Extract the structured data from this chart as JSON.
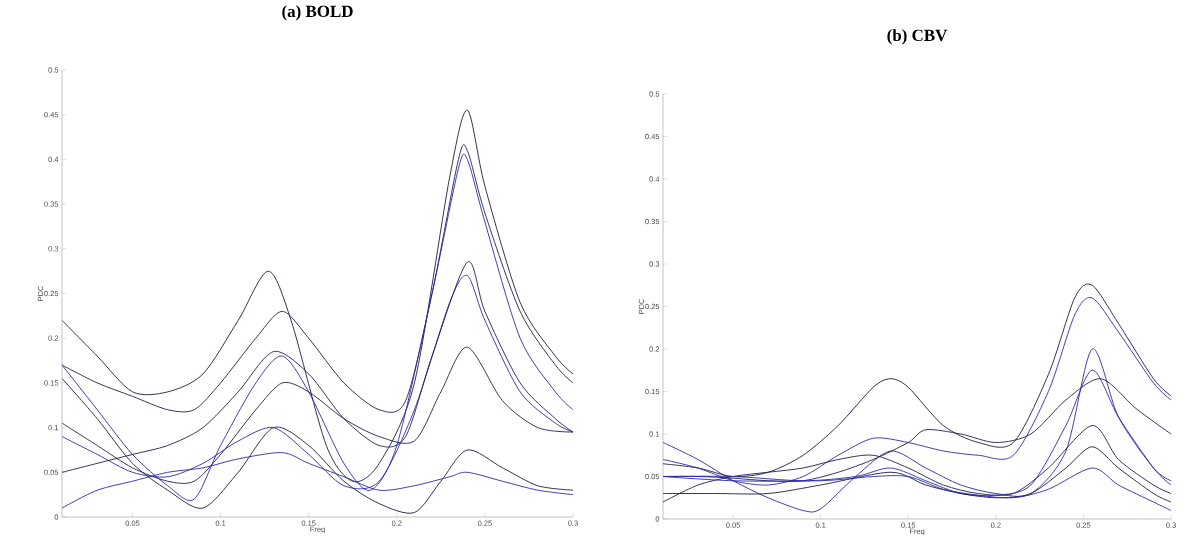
{
  "chart_data": [
    {
      "type": "line",
      "title": "(a) BOLD",
      "xlabel": "Freq",
      "ylabel": "PDC",
      "xlim": [
        0.01,
        0.3
      ],
      "ylim": [
        0,
        0.5
      ],
      "xticks": [
        0.05,
        0.1,
        0.15,
        0.2,
        0.25,
        0.3
      ],
      "yticks": [
        0,
        0.05,
        0.1,
        0.15,
        0.2,
        0.25,
        0.3,
        0.35,
        0.4,
        0.45,
        0.5
      ],
      "series": [
        {
          "color": "#1c1c40",
          "x": [
            0.01,
            0.03,
            0.05,
            0.07,
            0.09,
            0.11,
            0.127,
            0.14,
            0.16,
            0.175,
            0.19,
            0.21,
            0.23,
            0.24,
            0.25,
            0.27,
            0.29,
            0.3
          ],
          "values": [
            0.22,
            0.18,
            0.14,
            0.14,
            0.16,
            0.22,
            0.275,
            0.22,
            0.08,
            0.04,
            0.06,
            0.15,
            0.38,
            0.455,
            0.37,
            0.24,
            0.18,
            0.16
          ]
        },
        {
          "color": "#20204a",
          "x": [
            0.01,
            0.03,
            0.05,
            0.07,
            0.085,
            0.1,
            0.12,
            0.135,
            0.15,
            0.17,
            0.19,
            0.205,
            0.22,
            0.235,
            0.24,
            0.25,
            0.27,
            0.29,
            0.3
          ],
          "values": [
            0.17,
            0.15,
            0.135,
            0.12,
            0.12,
            0.15,
            0.2,
            0.23,
            0.2,
            0.15,
            0.12,
            0.13,
            0.25,
            0.4,
            0.41,
            0.34,
            0.23,
            0.17,
            0.15
          ]
        },
        {
          "color": "#2a2ab0",
          "x": [
            0.01,
            0.03,
            0.05,
            0.07,
            0.085,
            0.1,
            0.12,
            0.135,
            0.15,
            0.17,
            0.185,
            0.2,
            0.22,
            0.235,
            0.24,
            0.25,
            0.27,
            0.29,
            0.3
          ],
          "values": [
            0.17,
            0.12,
            0.07,
            0.035,
            0.02,
            0.08,
            0.15,
            0.18,
            0.14,
            0.06,
            0.03,
            0.08,
            0.25,
            0.39,
            0.4,
            0.33,
            0.2,
            0.14,
            0.12
          ]
        },
        {
          "color": "#1c1c40",
          "x": [
            0.01,
            0.03,
            0.05,
            0.07,
            0.09,
            0.11,
            0.13,
            0.15,
            0.17,
            0.19,
            0.21,
            0.225,
            0.24,
            0.26,
            0.28,
            0.3
          ],
          "values": [
            0.155,
            0.11,
            0.06,
            0.03,
            0.01,
            0.05,
            0.1,
            0.08,
            0.04,
            0.015,
            0.005,
            0.04,
            0.075,
            0.055,
            0.035,
            0.03
          ]
        },
        {
          "color": "#20204a",
          "x": [
            0.01,
            0.03,
            0.05,
            0.07,
            0.085,
            0.1,
            0.12,
            0.135,
            0.15,
            0.17,
            0.19,
            0.21,
            0.225,
            0.24,
            0.26,
            0.28,
            0.3
          ],
          "values": [
            0.105,
            0.08,
            0.055,
            0.04,
            0.04,
            0.07,
            0.12,
            0.15,
            0.14,
            0.11,
            0.09,
            0.085,
            0.14,
            0.19,
            0.13,
            0.1,
            0.095
          ]
        },
        {
          "color": "#2a2ab0",
          "x": [
            0.01,
            0.03,
            0.05,
            0.07,
            0.09,
            0.11,
            0.13,
            0.15,
            0.17,
            0.19,
            0.21,
            0.23,
            0.24,
            0.25,
            0.27,
            0.29,
            0.3
          ],
          "values": [
            0.09,
            0.07,
            0.05,
            0.045,
            0.06,
            0.085,
            0.1,
            0.07,
            0.035,
            0.04,
            0.12,
            0.24,
            0.27,
            0.22,
            0.14,
            0.105,
            0.095
          ]
        },
        {
          "color": "#20204a",
          "x": [
            0.01,
            0.03,
            0.05,
            0.07,
            0.09,
            0.11,
            0.13,
            0.15,
            0.17,
            0.19,
            0.205,
            0.22,
            0.24,
            0.25,
            0.27,
            0.29,
            0.3
          ],
          "values": [
            0.05,
            0.06,
            0.07,
            0.08,
            0.1,
            0.14,
            0.185,
            0.16,
            0.11,
            0.08,
            0.09,
            0.18,
            0.285,
            0.23,
            0.15,
            0.11,
            0.095
          ]
        },
        {
          "color": "#2a2ab0",
          "x": [
            0.01,
            0.03,
            0.05,
            0.07,
            0.09,
            0.11,
            0.135,
            0.15,
            0.17,
            0.19,
            0.21,
            0.23,
            0.24,
            0.26,
            0.28,
            0.3
          ],
          "values": [
            0.01,
            0.03,
            0.04,
            0.05,
            0.055,
            0.065,
            0.072,
            0.06,
            0.045,
            0.03,
            0.035,
            0.045,
            0.05,
            0.04,
            0.03,
            0.025
          ]
        }
      ]
    },
    {
      "type": "line",
      "title": "(b) CBV",
      "xlabel": "Freq",
      "ylabel": "PDC",
      "xlim": [
        0.01,
        0.3
      ],
      "ylim": [
        0,
        0.5
      ],
      "xticks": [
        0.05,
        0.1,
        0.15,
        0.2,
        0.25,
        0.3
      ],
      "yticks": [
        0,
        0.05,
        0.1,
        0.15,
        0.2,
        0.25,
        0.3,
        0.35,
        0.4,
        0.45,
        0.5
      ],
      "series": [
        {
          "color": "#2a2ab0",
          "x": [
            0.01,
            0.03,
            0.05,
            0.07,
            0.09,
            0.1,
            0.12,
            0.14,
            0.16,
            0.18,
            0.2,
            0.22,
            0.24,
            0.255,
            0.27,
            0.29,
            0.3
          ],
          "values": [
            0.09,
            0.07,
            0.045,
            0.025,
            0.01,
            0.012,
            0.05,
            0.08,
            0.06,
            0.04,
            0.03,
            0.03,
            0.08,
            0.2,
            0.12,
            0.06,
            0.045
          ]
        },
        {
          "color": "#1c1c40",
          "x": [
            0.01,
            0.03,
            0.05,
            0.07,
            0.09,
            0.11,
            0.13,
            0.14,
            0.15,
            0.17,
            0.19,
            0.21,
            0.23,
            0.245,
            0.255,
            0.27,
            0.29,
            0.3
          ],
          "values": [
            0.065,
            0.06,
            0.05,
            0.055,
            0.075,
            0.11,
            0.155,
            0.165,
            0.155,
            0.11,
            0.09,
            0.09,
            0.17,
            0.26,
            0.275,
            0.23,
            0.165,
            0.145
          ]
        },
        {
          "color": "#2a2ab0",
          "x": [
            0.01,
            0.03,
            0.05,
            0.07,
            0.09,
            0.11,
            0.13,
            0.15,
            0.17,
            0.19,
            0.21,
            0.23,
            0.245,
            0.255,
            0.27,
            0.29,
            0.3
          ],
          "values": [
            0.07,
            0.06,
            0.045,
            0.04,
            0.05,
            0.075,
            0.095,
            0.09,
            0.08,
            0.075,
            0.075,
            0.15,
            0.24,
            0.26,
            0.22,
            0.16,
            0.14
          ]
        },
        {
          "color": "#20204a",
          "x": [
            0.01,
            0.03,
            0.05,
            0.07,
            0.09,
            0.11,
            0.13,
            0.15,
            0.16,
            0.18,
            0.2,
            0.22,
            0.24,
            0.26,
            0.28,
            0.3
          ],
          "values": [
            0.05,
            0.05,
            0.048,
            0.045,
            0.045,
            0.055,
            0.07,
            0.09,
            0.105,
            0.1,
            0.09,
            0.1,
            0.14,
            0.165,
            0.13,
            0.1
          ]
        },
        {
          "color": "#20204a",
          "x": [
            0.01,
            0.03,
            0.05,
            0.07,
            0.09,
            0.11,
            0.13,
            0.15,
            0.17,
            0.19,
            0.21,
            0.23,
            0.255,
            0.27,
            0.29,
            0.3
          ],
          "values": [
            0.02,
            0.04,
            0.05,
            0.055,
            0.06,
            0.07,
            0.075,
            0.06,
            0.04,
            0.03,
            0.03,
            0.06,
            0.11,
            0.07,
            0.04,
            0.03
          ]
        },
        {
          "color": "#2a2ab0",
          "x": [
            0.01,
            0.05,
            0.09,
            0.12,
            0.14,
            0.16,
            0.18,
            0.2,
            0.22,
            0.24,
            0.255,
            0.27,
            0.29,
            0.3
          ],
          "values": [
            0.05,
            0.05,
            0.045,
            0.05,
            0.06,
            0.045,
            0.03,
            0.028,
            0.04,
            0.11,
            0.175,
            0.12,
            0.06,
            0.04
          ]
        },
        {
          "color": "#1c1c40",
          "x": [
            0.01,
            0.04,
            0.07,
            0.1,
            0.14,
            0.16,
            0.18,
            0.2,
            0.22,
            0.24,
            0.255,
            0.27,
            0.29,
            0.3
          ],
          "values": [
            0.03,
            0.03,
            0.03,
            0.04,
            0.055,
            0.04,
            0.03,
            0.025,
            0.03,
            0.06,
            0.085,
            0.06,
            0.03,
            0.02
          ]
        },
        {
          "color": "#2a2ab0",
          "x": [
            0.01,
            0.05,
            0.1,
            0.13,
            0.15,
            0.17,
            0.19,
            0.21,
            0.23,
            0.255,
            0.27,
            0.29,
            0.3
          ],
          "values": [
            0.05,
            0.045,
            0.045,
            0.05,
            0.05,
            0.035,
            0.028,
            0.025,
            0.035,
            0.06,
            0.04,
            0.02,
            0.01
          ]
        }
      ]
    }
  ]
}
